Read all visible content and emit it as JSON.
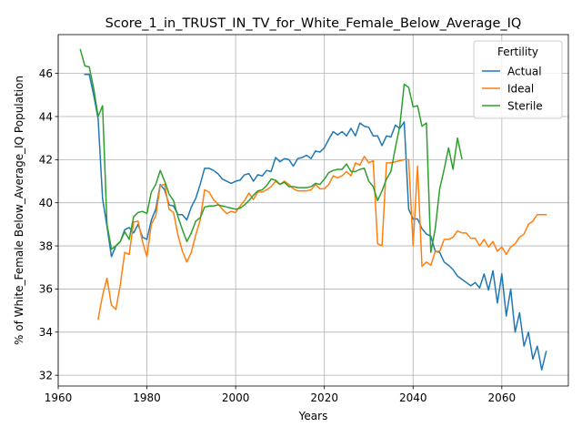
{
  "chart_data": {
    "type": "line",
    "title": "Score_1_in_TRUST_IN_TV_for_White_Female_Below_Average_IQ",
    "xlabel": "Years",
    "ylabel": "% of White_Female Below_Average_IQ Population",
    "xlim": [
      1960,
      2075
    ],
    "ylim": [
      31.5,
      47.8
    ],
    "xticks": [
      1960,
      1980,
      2000,
      2020,
      2040,
      2060
    ],
    "yticks": [
      32,
      34,
      36,
      38,
      40,
      42,
      44,
      46
    ],
    "grid": true,
    "legend": {
      "title": "Fertility",
      "placement": "top-right"
    },
    "series": [
      {
        "name": "Actual",
        "color": "#1f77b4",
        "x": [
          1966,
          1967,
          1968,
          1969,
          1970,
          1971,
          1972,
          1973,
          1974,
          1975,
          1976,
          1977,
          1978,
          1979,
          1980,
          1981,
          1982,
          1983,
          1984,
          1985,
          1986,
          1987,
          1988,
          1989,
          1990,
          1991,
          1992,
          1993,
          1994,
          1995,
          1996,
          1997,
          1998,
          1999,
          2000,
          2001,
          2002,
          2003,
          2004,
          2005,
          2006,
          2007,
          2008,
          2009,
          2010,
          2011,
          2012,
          2013,
          2014,
          2015,
          2016,
          2017,
          2018,
          2019,
          2020,
          2021,
          2022,
          2023,
          2024,
          2025,
          2026,
          2027,
          2028,
          2029,
          2030,
          2031,
          2032,
          2033,
          2034,
          2035,
          2036,
          2037,
          2038,
          2039,
          2040,
          2041,
          2042,
          2043,
          2044,
          2045,
          2046,
          2047,
          2048,
          2049,
          2050,
          2051,
          2052,
          2053,
          2054,
          2055,
          2056,
          2057,
          2058,
          2059,
          2060,
          2061,
          2062,
          2063,
          2064,
          2065,
          2066,
          2067,
          2068,
          2069,
          2070
        ],
        "y": [
          45.95,
          45.95,
          45.0,
          43.9,
          40.2,
          38.9,
          37.5,
          38.0,
          38.2,
          38.75,
          38.85,
          38.6,
          39.0,
          38.4,
          38.3,
          39.2,
          39.7,
          40.85,
          40.6,
          39.9,
          39.85,
          39.45,
          39.45,
          39.2,
          39.8,
          40.2,
          40.85,
          41.6,
          41.6,
          41.5,
          41.35,
          41.1,
          41.0,
          40.9,
          41.0,
          41.05,
          41.3,
          41.35,
          41.0,
          41.3,
          41.25,
          41.5,
          41.45,
          42.1,
          41.9,
          42.05,
          42.0,
          41.7,
          42.05,
          42.1,
          42.2,
          42.05,
          42.4,
          42.35,
          42.55,
          42.95,
          43.3,
          43.15,
          43.3,
          43.1,
          43.45,
          43.1,
          43.7,
          43.55,
          43.5,
          43.1,
          43.1,
          42.65,
          43.1,
          43.05,
          43.6,
          43.45,
          43.75,
          39.7,
          39.25,
          39.25,
          38.8,
          38.55,
          38.45,
          37.75,
          37.7,
          37.25,
          37.1,
          36.9,
          36.6,
          36.45,
          36.3,
          36.15,
          36.3,
          36.05,
          36.7,
          35.95,
          36.85,
          35.35,
          36.7,
          34.75,
          36.0,
          34.0,
          34.9,
          33.35,
          34.0,
          32.75,
          33.35,
          32.25,
          33.1
        ]
      },
      {
        "name": "Ideal",
        "color": "#ff7f0e",
        "x": [
          1969,
          1970,
          1971,
          1972,
          1973,
          1974,
          1975,
          1976,
          1977,
          1978,
          1979,
          1980,
          1981,
          1982,
          1983,
          1984,
          1985,
          1986,
          1987,
          1988,
          1989,
          1990,
          1991,
          1992,
          1993,
          1994,
          1995,
          1996,
          1997,
          1998,
          1999,
          2000,
          2001,
          2002,
          2003,
          2004,
          2005,
          2006,
          2007,
          2008,
          2009,
          2010,
          2011,
          2012,
          2013,
          2014,
          2015,
          2016,
          2017,
          2018,
          2019,
          2020,
          2021,
          2022,
          2023,
          2024,
          2025,
          2026,
          2027,
          2028,
          2029,
          2030,
          2031,
          2032,
          2033,
          2034,
          2035,
          2036,
          2037,
          2038,
          2039,
          2040,
          2041,
          2042,
          2043,
          2044,
          2045,
          2046,
          2047,
          2048,
          2049,
          2050,
          2051,
          2052,
          2053,
          2054,
          2055,
          2056,
          2057,
          2058,
          2059,
          2060,
          2061,
          2062,
          2063,
          2064,
          2065,
          2066,
          2067,
          2068,
          2069,
          2070
        ],
        "y": [
          34.6,
          35.7,
          36.5,
          35.25,
          35.05,
          36.2,
          37.7,
          37.6,
          39.1,
          39.15,
          38.2,
          37.5,
          39.0,
          39.4,
          40.8,
          40.85,
          39.7,
          39.55,
          38.5,
          37.75,
          37.25,
          37.7,
          38.5,
          39.2,
          40.6,
          40.5,
          40.15,
          39.95,
          39.7,
          39.5,
          39.6,
          39.55,
          39.85,
          40.1,
          40.45,
          40.15,
          40.5,
          40.5,
          40.6,
          40.75,
          41.0,
          40.85,
          41.0,
          40.85,
          40.65,
          40.55,
          40.55,
          40.55,
          40.6,
          40.85,
          40.65,
          40.65,
          40.85,
          41.25,
          41.15,
          41.25,
          41.45,
          41.25,
          41.85,
          41.75,
          42.15,
          41.85,
          41.95,
          38.1,
          38.0,
          41.85,
          41.85,
          41.9,
          41.95,
          42.0,
          42.0,
          38.0,
          41.7,
          37.05,
          37.25,
          37.1,
          37.75,
          37.75,
          38.3,
          38.3,
          38.4,
          38.7,
          38.6,
          38.6,
          38.35,
          38.35,
          38.0,
          38.3,
          37.95,
          38.2,
          37.75,
          37.95,
          37.6,
          37.95,
          38.1,
          38.4,
          38.55,
          39.0,
          39.15,
          39.45,
          39.45,
          39.45
        ]
      },
      {
        "name": "Sterile",
        "color": "#2ca02c",
        "x": [
          1965,
          1966,
          1967,
          1968,
          1969,
          1970,
          1971,
          1972,
          1973,
          1974,
          1975,
          1976,
          1977,
          1978,
          1979,
          1980,
          1981,
          1982,
          1983,
          1984,
          1985,
          1986,
          1987,
          1988,
          1989,
          1990,
          1991,
          1992,
          1993,
          1994,
          1995,
          1996,
          1997,
          1998,
          1999,
          2000,
          2001,
          2002,
          2003,
          2004,
          2005,
          2006,
          2007,
          2008,
          2009,
          2010,
          2011,
          2012,
          2013,
          2014,
          2015,
          2016,
          2017,
          2018,
          2019,
          2020,
          2021,
          2022,
          2023,
          2024,
          2025,
          2026,
          2027,
          2028,
          2029,
          2030,
          2031,
          2032,
          2033,
          2034,
          2035,
          2036,
          2037,
          2038,
          2039,
          2040,
          2041,
          2042,
          2043,
          2044,
          2045,
          2046,
          2047,
          2048,
          2049,
          2050,
          2051
        ],
        "y": [
          47.1,
          46.35,
          46.3,
          45.3,
          44.0,
          44.5,
          39.0,
          37.85,
          38.0,
          38.2,
          38.65,
          38.3,
          39.35,
          39.55,
          39.6,
          39.5,
          40.5,
          40.85,
          41.5,
          41.0,
          40.4,
          40.1,
          39.35,
          38.75,
          38.2,
          38.6,
          39.15,
          39.3,
          39.8,
          39.85,
          39.85,
          39.9,
          39.85,
          39.8,
          39.75,
          39.7,
          39.75,
          39.9,
          40.1,
          40.35,
          40.55,
          40.6,
          40.8,
          41.1,
          41.05,
          40.85,
          40.95,
          40.75,
          40.75,
          40.7,
          40.7,
          40.7,
          40.75,
          40.9,
          40.85,
          41.1,
          41.4,
          41.5,
          41.55,
          41.55,
          41.8,
          41.45,
          41.45,
          41.55,
          41.6,
          41.0,
          40.75,
          40.1,
          40.55,
          41.1,
          41.45,
          42.55,
          43.55,
          45.5,
          45.35,
          44.45,
          44.5,
          43.55,
          43.7,
          37.7,
          38.8,
          40.65,
          41.55,
          42.55,
          41.55,
          43.0,
          42.05
        ]
      }
    ]
  }
}
